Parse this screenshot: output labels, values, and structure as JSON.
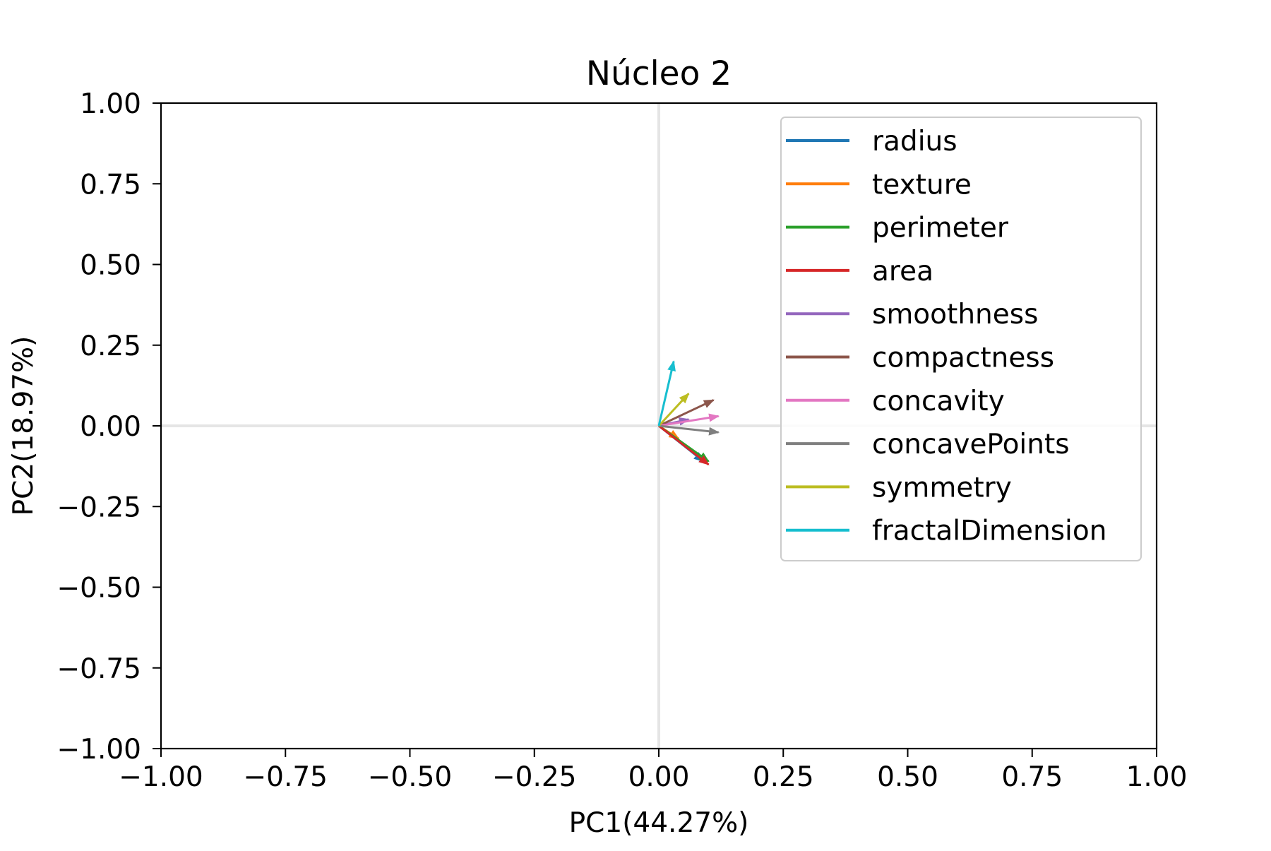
{
  "chart_data": {
    "type": "biplot",
    "title": "Núcleo 2",
    "xlabel": "PC1(44.27%)",
    "ylabel": "PC2(18.97%)",
    "xlim": [
      -1.0,
      1.0
    ],
    "ylim": [
      -1.0,
      1.0
    ],
    "xticks": [
      "−1.00",
      "−0.75",
      "−0.50",
      "−0.25",
      "0.00",
      "0.25",
      "0.50",
      "0.75",
      "1.00"
    ],
    "yticks": [
      "−1.00",
      "−0.75",
      "−0.50",
      "−0.25",
      "0.00",
      "0.25",
      "0.50",
      "0.75",
      "1.00"
    ],
    "grid": false,
    "zero_lines": true,
    "legend_position": "upper-right",
    "series": [
      {
        "name": "radius",
        "color": "#1f77b4",
        "x": 0.09,
        "y": -0.11
      },
      {
        "name": "texture",
        "color": "#ff7f0e",
        "x": 0.04,
        "y": -0.04
      },
      {
        "name": "perimeter",
        "color": "#2ca02c",
        "x": 0.1,
        "y": -0.11
      },
      {
        "name": "area",
        "color": "#d62728",
        "x": 0.1,
        "y": -0.12
      },
      {
        "name": "smoothness",
        "color": "#9467bd",
        "x": 0.06,
        "y": 0.02
      },
      {
        "name": "compactness",
        "color": "#8c564b",
        "x": 0.11,
        "y": 0.08
      },
      {
        "name": "concavity",
        "color": "#e377c2",
        "x": 0.12,
        "y": 0.03
      },
      {
        "name": "concavePoints",
        "color": "#7f7f7f",
        "x": 0.12,
        "y": -0.02
      },
      {
        "name": "symmetry",
        "color": "#bcbd22",
        "x": 0.06,
        "y": 0.1
      },
      {
        "name": "fractalDimension",
        "color": "#17becf",
        "x": 0.03,
        "y": 0.2
      }
    ]
  }
}
